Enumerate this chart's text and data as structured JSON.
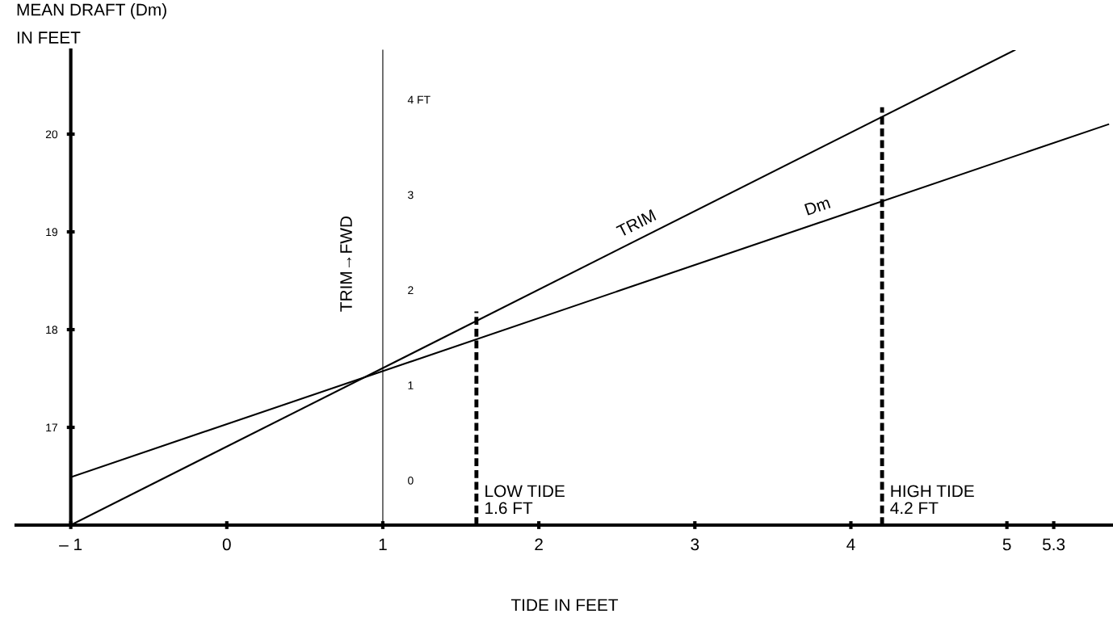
{
  "chart_data": {
    "type": "line",
    "xlabel": "TIDE IN FEET",
    "ylabel": "MEAN DRAFT (Dm)\nIN FEET",
    "y2label": "TRIM→FWD",
    "xlim": [
      -1.35,
      5.68
    ],
    "xticks": [
      {
        "value": -1,
        "label": "– 1"
      },
      0,
      1,
      2,
      3,
      4,
      5,
      5.3
    ],
    "ylim": [
      16.0,
      20.86
    ],
    "yticks": [
      17,
      18,
      19,
      20
    ],
    "y2lim": [
      -0.47,
      4.52
    ],
    "y2ticks": [
      0,
      1,
      2,
      3,
      {
        "value": 4,
        "label": "4 FT"
      }
    ],
    "series": [
      {
        "name": "TRIM",
        "color": "#000000",
        "axis": "y2",
        "x": [
          -1,
          5.05
        ],
        "values": [
          -0.47,
          4.52
        ]
      },
      {
        "name": "Dm",
        "color": "#000000",
        "x": [
          -1,
          5.65
        ],
        "values": [
          16.49,
          20.1
        ]
      }
    ],
    "ref_lines": [
      {
        "axis": "x",
        "value": 1.6,
        "label": "LOW TIDE\n1.6 FT",
        "color": "#000000",
        "line_style": "dashed"
      },
      {
        "axis": "x",
        "value": 4.2,
        "label": "HIGH TIDE\n4.2 FT",
        "color": "#000000",
        "line_style": "dashed"
      }
    ],
    "grid": false,
    "legend": false,
    "marker": "none",
    "line_style": "solid"
  }
}
